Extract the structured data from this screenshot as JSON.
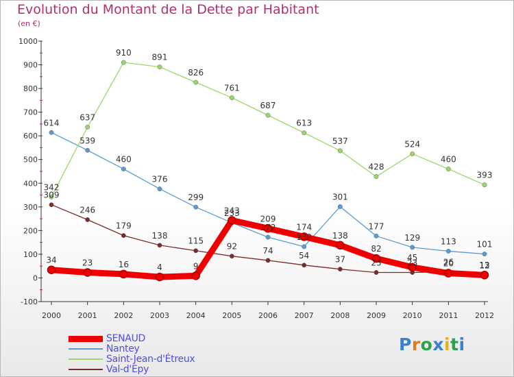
{
  "title": "Evolution du Montant de la Dette par Habitant",
  "subtitle": "(en €)",
  "logo": {
    "text": "Proxiti",
    "colors": [
      "#3a7fd0",
      "#e07a20",
      "#2aa34a",
      "#3a7fd0",
      "#e8b020",
      "#2aa34a",
      "#3a7fd0"
    ]
  },
  "chart_data": {
    "type": "line",
    "categories": [
      "2000",
      "2001",
      "2002",
      "2003",
      "2004",
      "2005",
      "2006",
      "2007",
      "2008",
      "2009",
      "2010",
      "2011",
      "2012"
    ],
    "ylim": [
      -100,
      1000
    ],
    "yticks": [
      -100,
      0,
      100,
      200,
      300,
      400,
      500,
      600,
      700,
      800,
      900,
      1000
    ],
    "grid": false,
    "legend_position": "bottom-left",
    "series": [
      {
        "name": "SENAUD",
        "color": "#ee0000",
        "values": [
          34,
          23,
          16,
          4,
          9,
          243,
          209,
          174,
          138,
          82,
          45,
          20,
          12
        ]
      },
      {
        "name": "Nantey",
        "color": "#5b9bd5",
        "values": [
          614,
          539,
          460,
          376,
          299,
          233,
          172,
          132,
          301,
          177,
          129,
          113,
          101
        ]
      },
      {
        "name": "Saint-Jean-d'Étreux",
        "color": "#9bd66a",
        "values": [
          342,
          637,
          910,
          891,
          826,
          761,
          687,
          613,
          537,
          428,
          524,
          460,
          393
        ]
      },
      {
        "name": "Val-d'Epy",
        "color": "#7a2a2a",
        "values": [
          309,
          246,
          179,
          138,
          115,
          92,
          74,
          54,
          37,
          23,
          23,
          26,
          13
        ]
      }
    ]
  }
}
